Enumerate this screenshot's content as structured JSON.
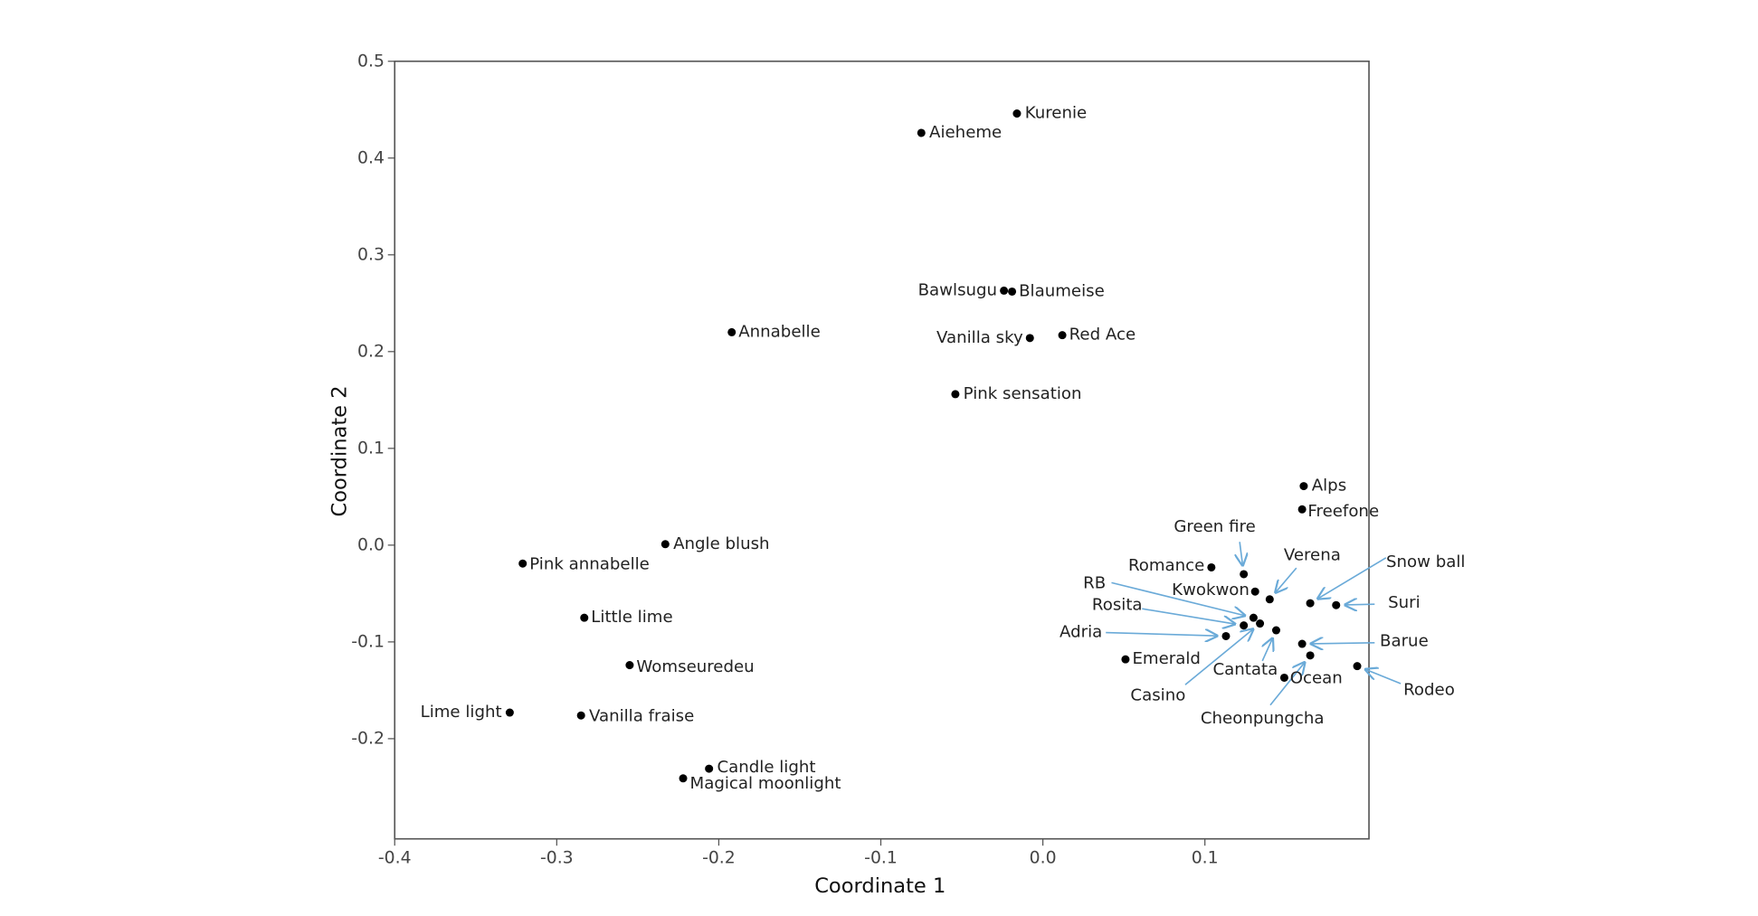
{
  "chart_data": {
    "type": "scatter",
    "x_label": "Coordinate 1",
    "y_label": "Coordinate 2",
    "xlim": [
      -0.4,
      0.2
    ],
    "ylim": [
      -0.3,
      0.5
    ],
    "xticks": [
      -0.4,
      -0.3,
      -0.2,
      -0.1,
      {
        "value": 0,
        "label": "0.0"
      },
      0.1
    ],
    "yticks": [
      -0.2,
      -0.1,
      {
        "value": 0,
        "label": "0.0"
      },
      0.1,
      0.2,
      0.3,
      0.4,
      0.5
    ],
    "color": "#000000",
    "points": [
      {
        "label": "Kurenie",
        "x": -0.016,
        "y": 0.446
      },
      {
        "label": "Aieheme",
        "x": -0.075,
        "y": 0.426
      },
      {
        "label": "Bawlsugu",
        "x": -0.024,
        "y": 0.263
      },
      {
        "label": "Blaumeise",
        "x": -0.019,
        "y": 0.262
      },
      {
        "label": "Vanilla sky",
        "x": -0.008,
        "y": 0.214
      },
      {
        "label": "Red Ace",
        "x": 0.012,
        "y": 0.217
      },
      {
        "label": "Annabelle",
        "x": -0.192,
        "y": 0.22
      },
      {
        "label": "Pink sensation",
        "x": -0.054,
        "y": 0.156
      },
      {
        "label": "Alps",
        "x": 0.161,
        "y": 0.061
      },
      {
        "label": "Freefone",
        "x": 0.16,
        "y": 0.037
      },
      {
        "label": "Green fire",
        "x": 0.124,
        "y": -0.03
      },
      {
        "label": "Romance",
        "x": 0.104,
        "y": -0.023
      },
      {
        "label": "Verena",
        "x": 0.14,
        "y": -0.056
      },
      {
        "label": "Kwokwon",
        "x": 0.131,
        "y": -0.048
      },
      {
        "label": "Snow ball",
        "x": 0.165,
        "y": -0.06
      },
      {
        "label": "Suri",
        "x": 0.181,
        "y": -0.062
      },
      {
        "label": "RB",
        "x": 0.13,
        "y": -0.075
      },
      {
        "label": "Rosita",
        "x": 0.124,
        "y": -0.083
      },
      {
        "label": "Casino",
        "x": 0.134,
        "y": -0.081
      },
      {
        "label": "Cantata",
        "x": 0.144,
        "y": -0.088
      },
      {
        "label": "Adria",
        "x": 0.113,
        "y": -0.094
      },
      {
        "label": "Barue",
        "x": 0.16,
        "y": -0.102
      },
      {
        "label": "Cheonpungcha",
        "x": 0.165,
        "y": -0.114
      },
      {
        "label": "Emerald",
        "x": 0.051,
        "y": -0.118
      },
      {
        "label": "Ocean",
        "x": 0.149,
        "y": -0.137
      },
      {
        "label": "Rodeo",
        "x": 0.194,
        "y": -0.125
      },
      {
        "label": "Angle blush",
        "x": -0.233,
        "y": 0.001
      },
      {
        "label": "Pink annabelle",
        "x": -0.321,
        "y": -0.019
      },
      {
        "label": "Little lime",
        "x": -0.283,
        "y": -0.075
      },
      {
        "label": "Womseuredeu",
        "x": -0.255,
        "y": -0.124
      },
      {
        "label": "Lime light",
        "x": -0.329,
        "y": -0.173
      },
      {
        "label": "Vanilla fraise",
        "x": -0.285,
        "y": -0.176
      },
      {
        "label": "Candle light",
        "x": -0.206,
        "y": -0.231
      },
      {
        "label": "Magical moonlight",
        "x": -0.222,
        "y": -0.241
      }
    ]
  }
}
